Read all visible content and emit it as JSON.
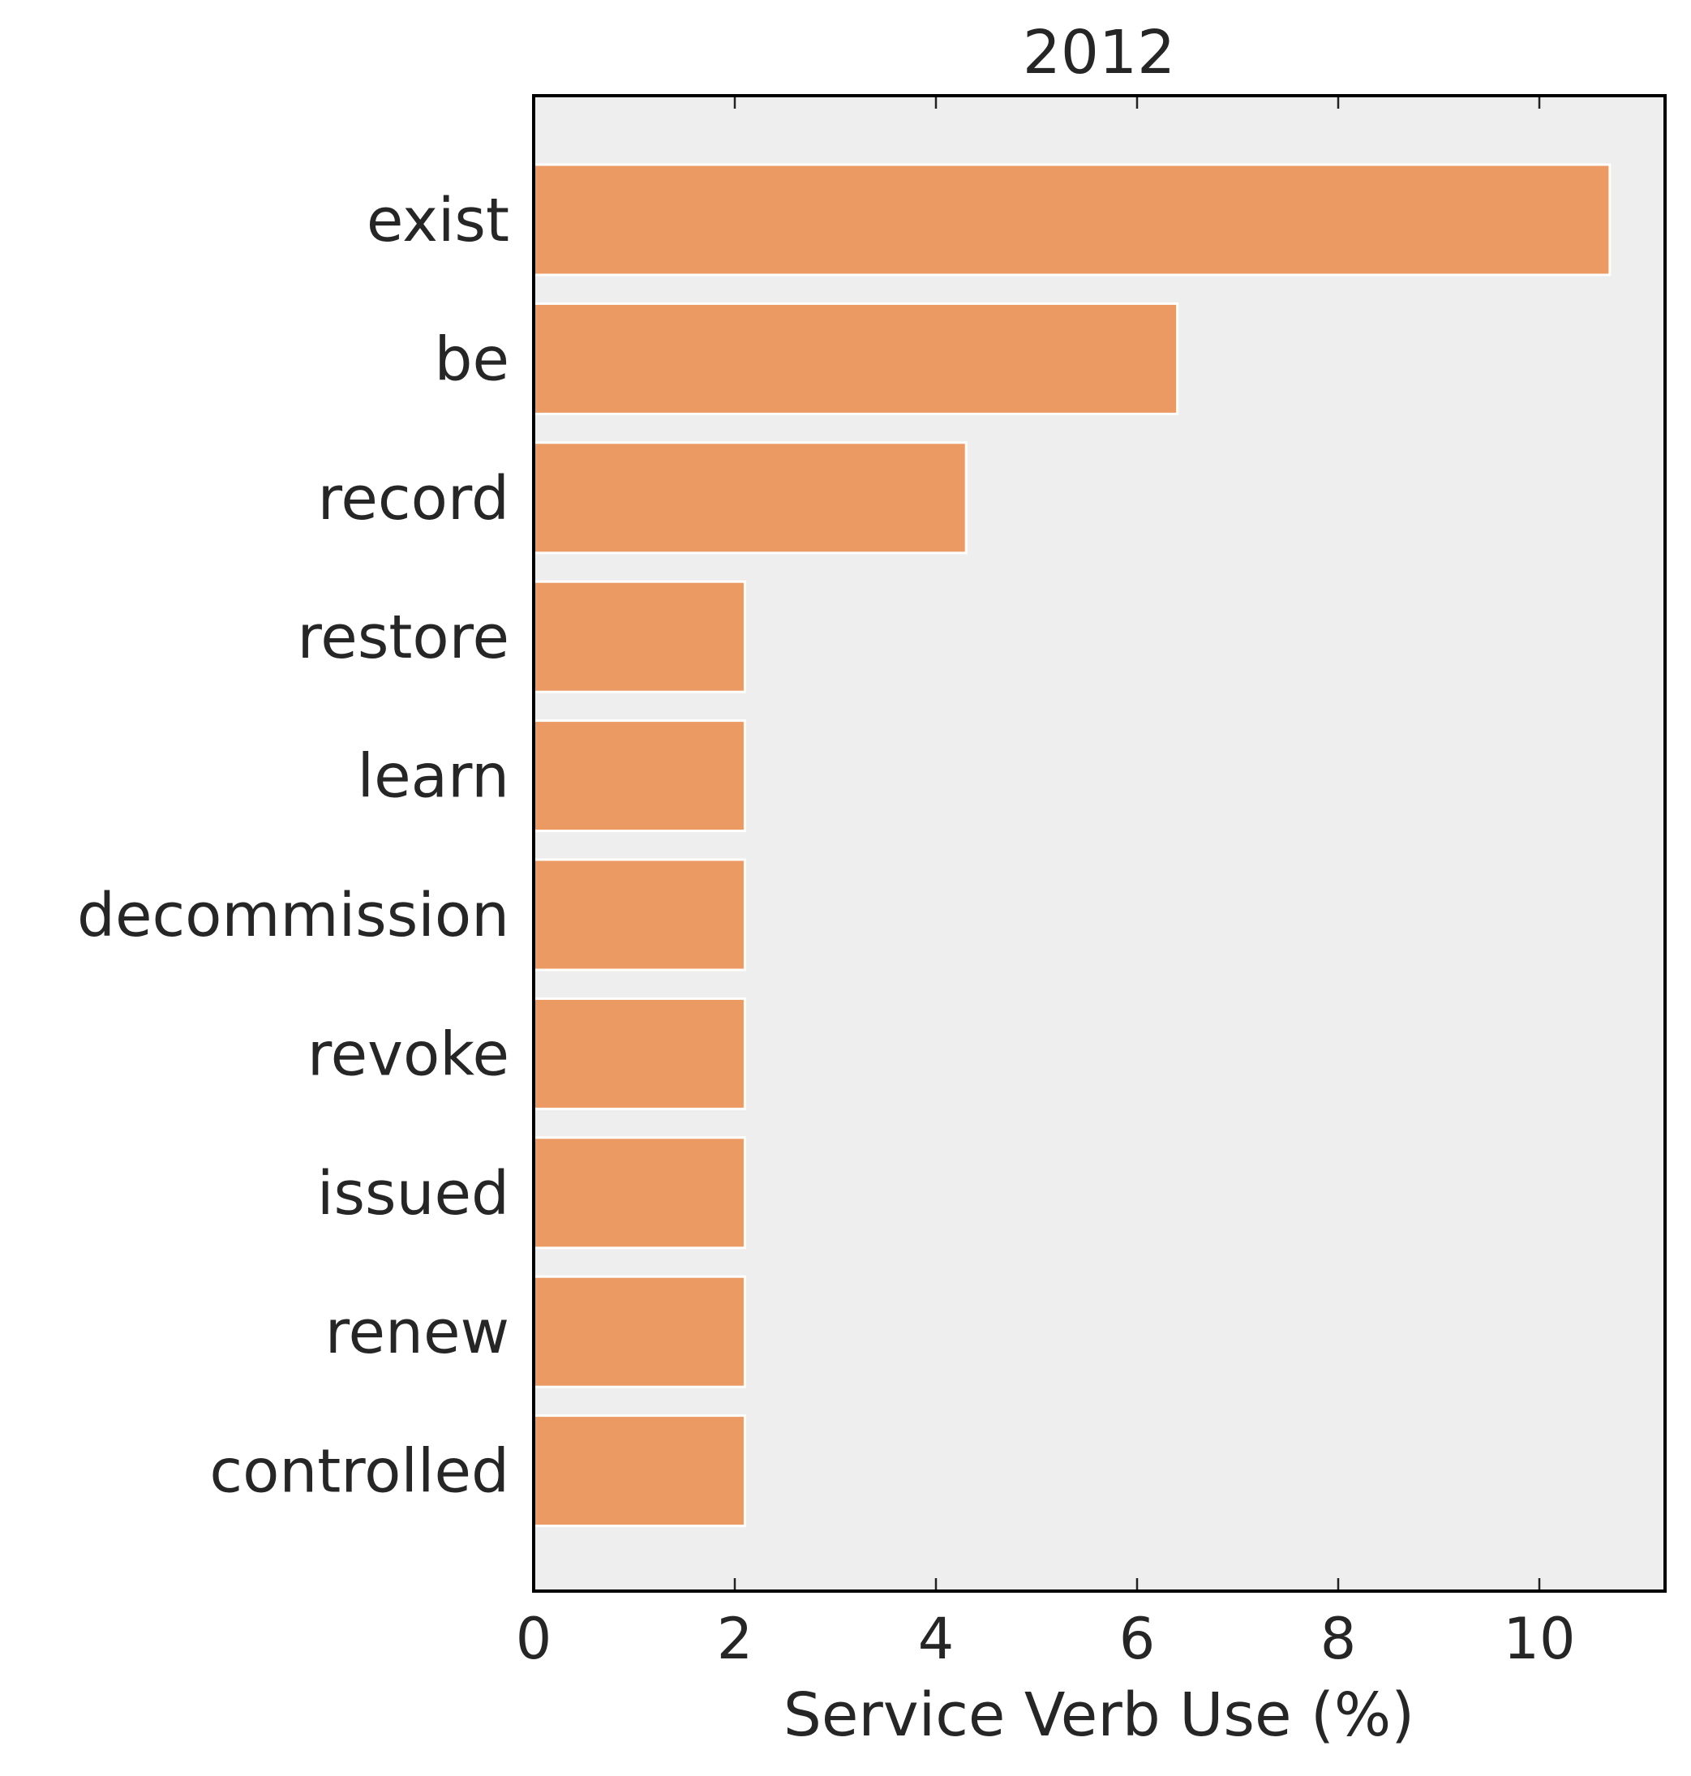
{
  "chart_data": {
    "type": "bar",
    "orientation": "horizontal",
    "title": "2012",
    "xlabel": "Service Verb Use (%)",
    "ylabel": "",
    "categories": [
      "exist",
      "be",
      "record",
      "restore",
      "learn",
      "decommission",
      "revoke",
      "issued",
      "renew",
      "controlled"
    ],
    "values": [
      10.7,
      6.4,
      4.3,
      2.1,
      2.1,
      2.1,
      2.1,
      2.1,
      2.1,
      2.1
    ],
    "xlim": [
      0,
      11.25
    ],
    "xticks": [
      0,
      2,
      4,
      6,
      8,
      10
    ],
    "xtick_labels": [
      "0",
      "2",
      "4",
      "6",
      "8",
      "10"
    ],
    "grid": false,
    "colors": {
      "bar": "#ea9a62",
      "plot_background": "#eeeeee"
    }
  }
}
